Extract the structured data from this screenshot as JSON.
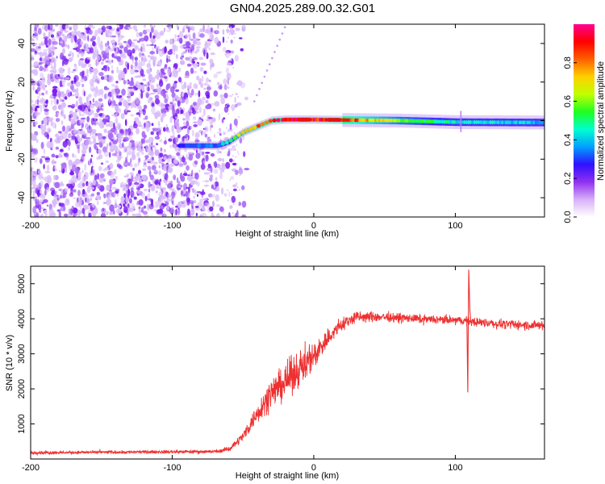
{
  "title": "GN04.2025.289.00.32.G01",
  "chart_data": [
    {
      "type": "heatmap",
      "xlabel": "Height of straight line (km)",
      "ylabel": "Frequency (Hz)",
      "xlim": [
        -200,
        163
      ],
      "ylim": [
        -50,
        50
      ],
      "xticks": [
        -200,
        -100,
        0,
        100
      ],
      "xtick_labels": [
        "-200",
        "-100",
        "0",
        "100"
      ],
      "yticks": [
        -40,
        -20,
        0,
        20,
        40
      ],
      "ytick_labels": [
        "-40",
        "-20",
        "0",
        "20",
        "40"
      ],
      "noise_region_x": [
        -200,
        -58
      ],
      "frequency_track": {
        "x": [
          -95,
          -68,
          -60,
          -50,
          -40,
          -30,
          -20,
          -10,
          0,
          20,
          60,
          100,
          163
        ],
        "freq": [
          -13,
          -13,
          -11,
          -6,
          -3,
          0,
          0.5,
          0.5,
          0.5,
          0.3,
          0,
          -0.8,
          -1
        ],
        "amplitude": [
          0.3,
          0.35,
          0.5,
          0.75,
          0.8,
          0.85,
          0.95,
          1.0,
          0.95,
          0.9,
          0.6,
          0.45,
          0.4
        ]
      },
      "colorbar": {
        "label": "Normalized spectral amplitude",
        "range": [
          0,
          1
        ],
        "ticks": [
          0.0,
          0.2,
          0.4,
          0.6,
          0.8
        ],
        "tick_labels": [
          "0.0",
          "0.2",
          "0.4",
          "0.6",
          "0.8"
        ],
        "colors": [
          "#ffffff",
          "#d8b0f8",
          "#9030f0",
          "#3010ff",
          "#00a0ff",
          "#00ffd0",
          "#20ff20",
          "#c0ff00",
          "#ffd000",
          "#ff6000",
          "#ff0000",
          "#ff0090"
        ]
      }
    },
    {
      "type": "line",
      "xlabel": "Height of straight line (km)",
      "ylabel": "SNR (10 * v/v)",
      "xlim": [
        -200,
        163
      ],
      "ylim": [
        0,
        5500
      ],
      "xticks": [
        -200,
        -100,
        0,
        100
      ],
      "xtick_labels": [
        "-200",
        "-100",
        "0",
        "100"
      ],
      "yticks": [
        1000,
        2000,
        3000,
        4000,
        5000
      ],
      "ytick_labels": [
        "1000",
        "2000",
        "3000",
        "4000",
        "5000"
      ],
      "series": [
        {
          "name": "SNR",
          "color": "#ee3030",
          "x": [
            -200,
            -120,
            -70,
            -60,
            -50,
            -40,
            -30,
            -20,
            -10,
            0,
            10,
            20,
            30,
            50,
            80,
            105,
            130,
            163
          ],
          "y": [
            180,
            200,
            210,
            280,
            650,
            1300,
            1900,
            2200,
            2600,
            2950,
            3450,
            3850,
            4050,
            4050,
            3980,
            3950,
            3850,
            3800
          ],
          "noise": [
            40,
            40,
            45,
            60,
            120,
            250,
            350,
            450,
            450,
            350,
            250,
            180,
            150,
            120,
            110,
            110,
            110,
            120
          ],
          "spikes": [
            {
              "x": 109.5,
              "value": 5400
            },
            {
              "x": 108.8,
              "value": 1900
            },
            {
              "x": 110.3,
              "value": 4700
            }
          ]
        }
      ]
    }
  ]
}
